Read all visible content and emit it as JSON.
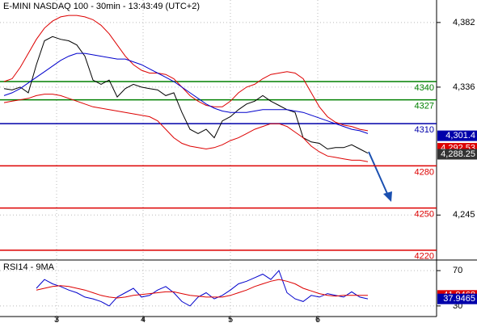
{
  "chart_data": [
    {
      "type": "line",
      "title": "E-MINI NASDAQ 100 - 30min - 13:43:49 (UTC+2)",
      "x": [
        0,
        1,
        2,
        3,
        4,
        5,
        6,
        7,
        8,
        9,
        10,
        11,
        12,
        13,
        14,
        15,
        16,
        17,
        18,
        19,
        20,
        21,
        22,
        23,
        24,
        25,
        26,
        27,
        28,
        29,
        30,
        31,
        32,
        33,
        34,
        35,
        36,
        37,
        38,
        39,
        40,
        41,
        42,
        43,
        44,
        45
      ],
      "xlim": [
        -0.5,
        53.5
      ],
      "ylim": [
        4213,
        4398
      ],
      "yticks": [
        {
          "value": 4382,
          "label": "4,382"
        },
        {
          "value": 4336,
          "label": "4,336"
        },
        {
          "value": 4245,
          "label": "4,245"
        }
      ],
      "grid": true,
      "levels": [
        4340,
        4327,
        4310,
        4280,
        4250,
        4220
      ],
      "level_colors": [
        "#008000",
        "#008000",
        "#0000aa",
        "#dd0000",
        "#dd0000",
        "#dd0000"
      ],
      "series": [
        {
          "color": "#000000",
          "values": [
            4335,
            4334,
            4336,
            4332,
            4352,
            4369,
            4372,
            4370,
            4369,
            4366,
            4358,
            4341,
            4338,
            4341,
            4329,
            4335,
            4338,
            4336,
            4335,
            4334,
            4330,
            4332,
            4318,
            4306,
            4303,
            4306,
            4300,
            4312,
            4315,
            4320,
            4324,
            4326,
            4330,
            4326,
            4323,
            4320,
            4318,
            4300,
            4297,
            4296,
            4292,
            4293,
            4293,
            4295,
            4292,
            4289
          ]
        },
        {
          "color": "#dd0000",
          "values": [
            4340,
            4342,
            4350,
            4360,
            4370,
            4378,
            4383,
            4386,
            4387,
            4387,
            4386,
            4384,
            4380,
            4374,
            4366,
            4358,
            4352,
            4348,
            4346,
            4346,
            4345,
            4342,
            4336,
            4330,
            4326,
            4323,
            4322,
            4322,
            4326,
            4332,
            4336,
            4338,
            4342,
            4345,
            4346,
            4347,
            4346,
            4342,
            4332,
            4322,
            4315,
            4311,
            4309,
            4308,
            4306,
            4305
          ]
        },
        {
          "color": "#dd0000",
          "values": [
            4325,
            4326,
            4327,
            4328,
            4330,
            4331,
            4331,
            4330,
            4328,
            4326,
            4324,
            4322,
            4321,
            4320,
            4319,
            4318,
            4317,
            4316,
            4315,
            4312,
            4306,
            4300,
            4296,
            4294,
            4293,
            4292,
            4293,
            4295,
            4298,
            4300,
            4303,
            4306,
            4308,
            4310,
            4310,
            4308,
            4304,
            4300,
            4294,
            4290,
            4287,
            4286,
            4285,
            4284,
            4284,
            4283
          ]
        },
        {
          "color": "#0000cc",
          "values": [
            4330,
            4332,
            4335,
            4339,
            4343,
            4347,
            4351,
            4355,
            4358,
            4360,
            4360,
            4359,
            4358,
            4357,
            4356,
            4356,
            4354,
            4352,
            4349,
            4346,
            4343,
            4340,
            4336,
            4332,
            4328,
            4324,
            4321,
            4319,
            4318,
            4318,
            4318,
            4319,
            4320,
            4320,
            4320,
            4320,
            4319,
            4318,
            4316,
            4314,
            4312,
            4310,
            4308,
            4306,
            4305,
            4303
          ]
        }
      ],
      "price_labels": [
        {
          "value": 4301.4,
          "label": "4,301.4",
          "color": "#0000aa"
        },
        {
          "value": 4292.53,
          "label": "4,292.53",
          "color": "#dd0000"
        },
        {
          "value": 4288.25,
          "label": "4,288.25",
          "color": "#333333"
        }
      ]
    },
    {
      "type": "line",
      "title": "RSI14 - 9MA",
      "x": [
        0,
        1,
        2,
        3,
        4,
        5,
        6,
        7,
        8,
        9,
        10,
        11,
        12,
        13,
        14,
        15,
        16,
        17,
        18,
        19,
        20,
        21,
        22,
        23,
        24,
        25,
        26,
        27,
        28,
        29,
        30,
        31,
        32,
        33,
        34,
        35,
        36,
        37,
        38,
        39,
        40,
        41,
        42,
        43,
        44,
        45
      ],
      "xlim": [
        -0.5,
        53.5
      ],
      "xticks": [
        {
          "value": 6.5,
          "label": "3"
        },
        {
          "value": 17.2,
          "label": "4"
        },
        {
          "value": 28,
          "label": "5"
        },
        {
          "value": 38.8,
          "label": "6"
        }
      ],
      "ylim": [
        18,
        82
      ],
      "yticks": [
        70,
        30
      ],
      "grid": true,
      "series": [
        {
          "color": "#0000cc",
          "values": [
            null,
            null,
            null,
            null,
            50,
            60,
            55,
            52,
            48,
            45,
            40,
            38,
            35,
            30,
            40,
            45,
            50,
            40,
            42,
            48,
            52,
            45,
            35,
            30,
            40,
            45,
            38,
            42,
            48,
            55,
            58,
            62,
            66,
            60,
            70,
            45,
            38,
            35,
            42,
            40,
            44,
            42,
            40,
            46,
            40,
            38
          ]
        },
        {
          "color": "#dd0000",
          "values": [
            null,
            null,
            null,
            null,
            48,
            50,
            52,
            53,
            52,
            50,
            48,
            45,
            42,
            40,
            39,
            40,
            42,
            43,
            44,
            45,
            46,
            46,
            44,
            42,
            41,
            40,
            40,
            40,
            42,
            45,
            48,
            52,
            55,
            58,
            60,
            58,
            55,
            50,
            47,
            44,
            42,
            41,
            42,
            42,
            42,
            42
          ]
        }
      ],
      "price_labels": [
        {
          "value": 41.9468,
          "label": "41.9468",
          "color": "#dd0000"
        },
        {
          "value": 37.9465,
          "label": "37.9465",
          "color": "#0000aa"
        }
      ]
    }
  ]
}
